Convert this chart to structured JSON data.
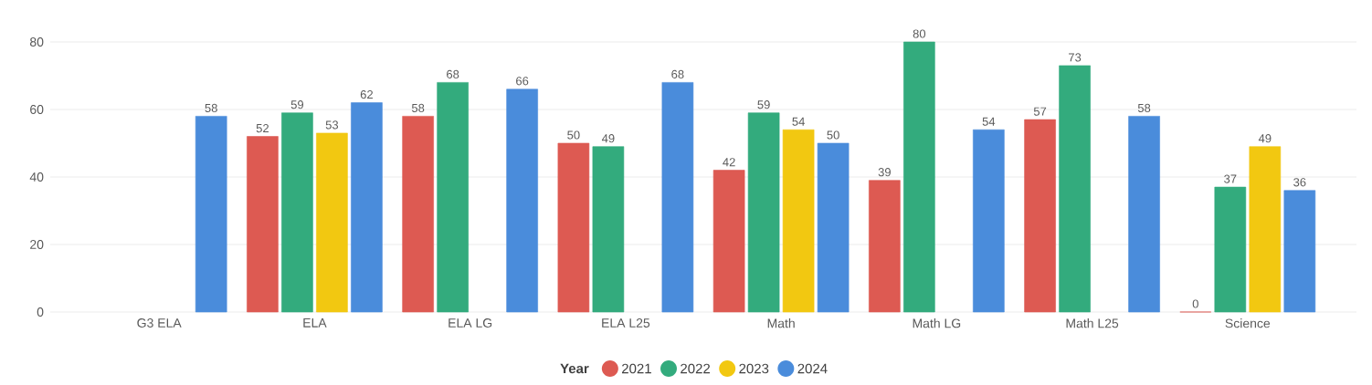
{
  "chart_data": {
    "type": "bar",
    "categories": [
      "G3 ELA",
      "ELA",
      "ELA LG",
      "ELA L25",
      "Math",
      "Math LG",
      "Math L25",
      "Science"
    ],
    "series": [
      {
        "name": "2021",
        "color": "#dd5a52",
        "values": [
          null,
          52,
          58,
          50,
          42,
          39,
          57,
          0
        ],
        "value_labels": [
          null,
          "52",
          "58",
          "50",
          "42",
          "39",
          "57",
          "0"
        ]
      },
      {
        "name": "2022",
        "color": "#33ab7d",
        "values": [
          null,
          59,
          68,
          49,
          59,
          80,
          73,
          37
        ],
        "value_labels": [
          null,
          "59",
          "68",
          "49",
          "59",
          "80",
          "73",
          "37"
        ]
      },
      {
        "name": "2023",
        "color": "#f2c811",
        "values": [
          null,
          53,
          null,
          null,
          54,
          null,
          null,
          49
        ],
        "value_labels": [
          null,
          "53",
          null,
          null,
          "54",
          null,
          null,
          "49"
        ]
      },
      {
        "name": "2024",
        "color": "#4a8cdb",
        "values": [
          58,
          62,
          66,
          68,
          50,
          54,
          58,
          36
        ],
        "value_labels": [
          "58",
          "62",
          "66",
          "68",
          "50",
          "54",
          "58",
          "36"
        ]
      }
    ],
    "ylim": [
      0,
      80
    ],
    "yticks": [
      0,
      20,
      40,
      60,
      80
    ],
    "grid": "y",
    "legend": "bottom",
    "legend_title": "Year"
  }
}
